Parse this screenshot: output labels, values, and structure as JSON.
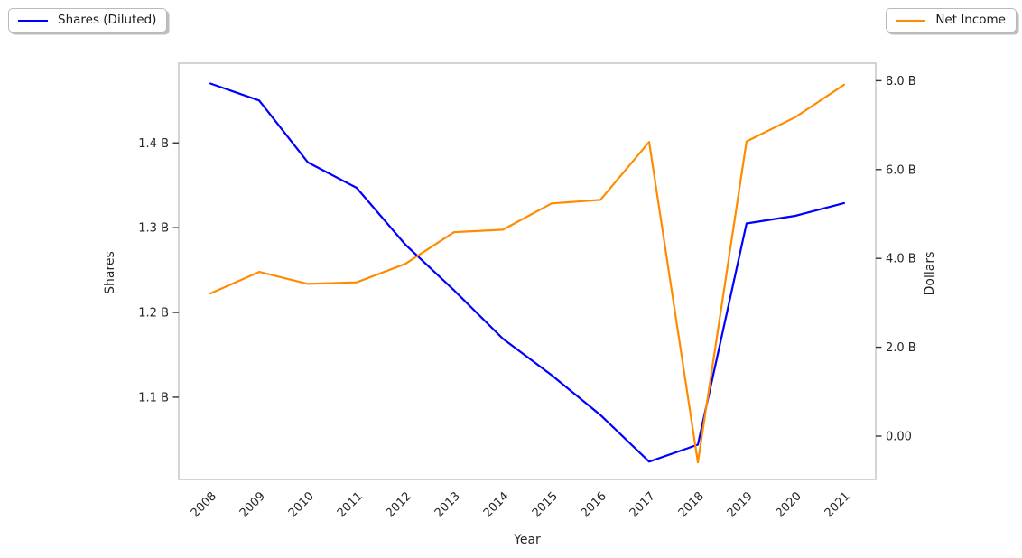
{
  "legend": {
    "left": {
      "label": "Shares (Diluted)",
      "color": "#0000ff"
    },
    "right": {
      "label": "Net Income",
      "color": "#ff8c00"
    }
  },
  "chart_data": {
    "type": "line",
    "title": "",
    "xlabel": "Year",
    "grid": false,
    "x": [
      2008,
      2009,
      2010,
      2011,
      2012,
      2013,
      2014,
      2015,
      2016,
      2017,
      2018,
      2019,
      2020,
      2021
    ],
    "x_tick_labels": [
      "2008",
      "2009",
      "2010",
      "2011",
      "2012",
      "2013",
      "2014",
      "2015",
      "2016",
      "2017",
      "2018",
      "2019",
      "2020",
      "2021"
    ],
    "xlim": [
      2007.35,
      2021.65
    ],
    "series": [
      {
        "name": "Shares (Diluted)",
        "axis": "left",
        "color": "#0000ff",
        "unit": "billions of shares",
        "values": [
          1.47,
          1.45,
          1.377,
          1.347,
          1.28,
          1.226,
          1.169,
          1.126,
          1.079,
          1.024,
          1.044,
          1.305,
          1.314,
          1.329
        ]
      },
      {
        "name": "Net Income",
        "axis": "right",
        "color": "#ff8c00",
        "unit": "billions of dollars",
        "values": [
          3.212,
          3.696,
          3.427,
          3.462,
          3.877,
          4.592,
          4.645,
          5.237,
          5.317,
          6.622,
          -0.594,
          6.634,
          7.179,
          7.91
        ]
      }
    ],
    "left_axis": {
      "label": "Shares",
      "ylim": [
        1.003,
        1.494
      ],
      "ticks": [
        {
          "v": 1.1,
          "label": "1.1 B"
        },
        {
          "v": 1.2,
          "label": "1.2 B"
        },
        {
          "v": 1.3,
          "label": "1.3 B"
        },
        {
          "v": 1.4,
          "label": "1.4 B"
        }
      ]
    },
    "right_axis": {
      "label": "Dollars",
      "ylim": [
        -0.976,
        8.394
      ],
      "ticks": [
        {
          "v": 0,
          "label": "0.00"
        },
        {
          "v": 2,
          "label": "2.0 B"
        },
        {
          "v": 4,
          "label": "4.0 B"
        },
        {
          "v": 6,
          "label": "6.0 B"
        },
        {
          "v": 8,
          "label": "8.0 B"
        }
      ]
    },
    "legend_position": "outside-top-corners"
  },
  "style": {
    "plot_border_color": "#c9c9c9",
    "tick_color": "#333333",
    "text_color": "#262626"
  }
}
